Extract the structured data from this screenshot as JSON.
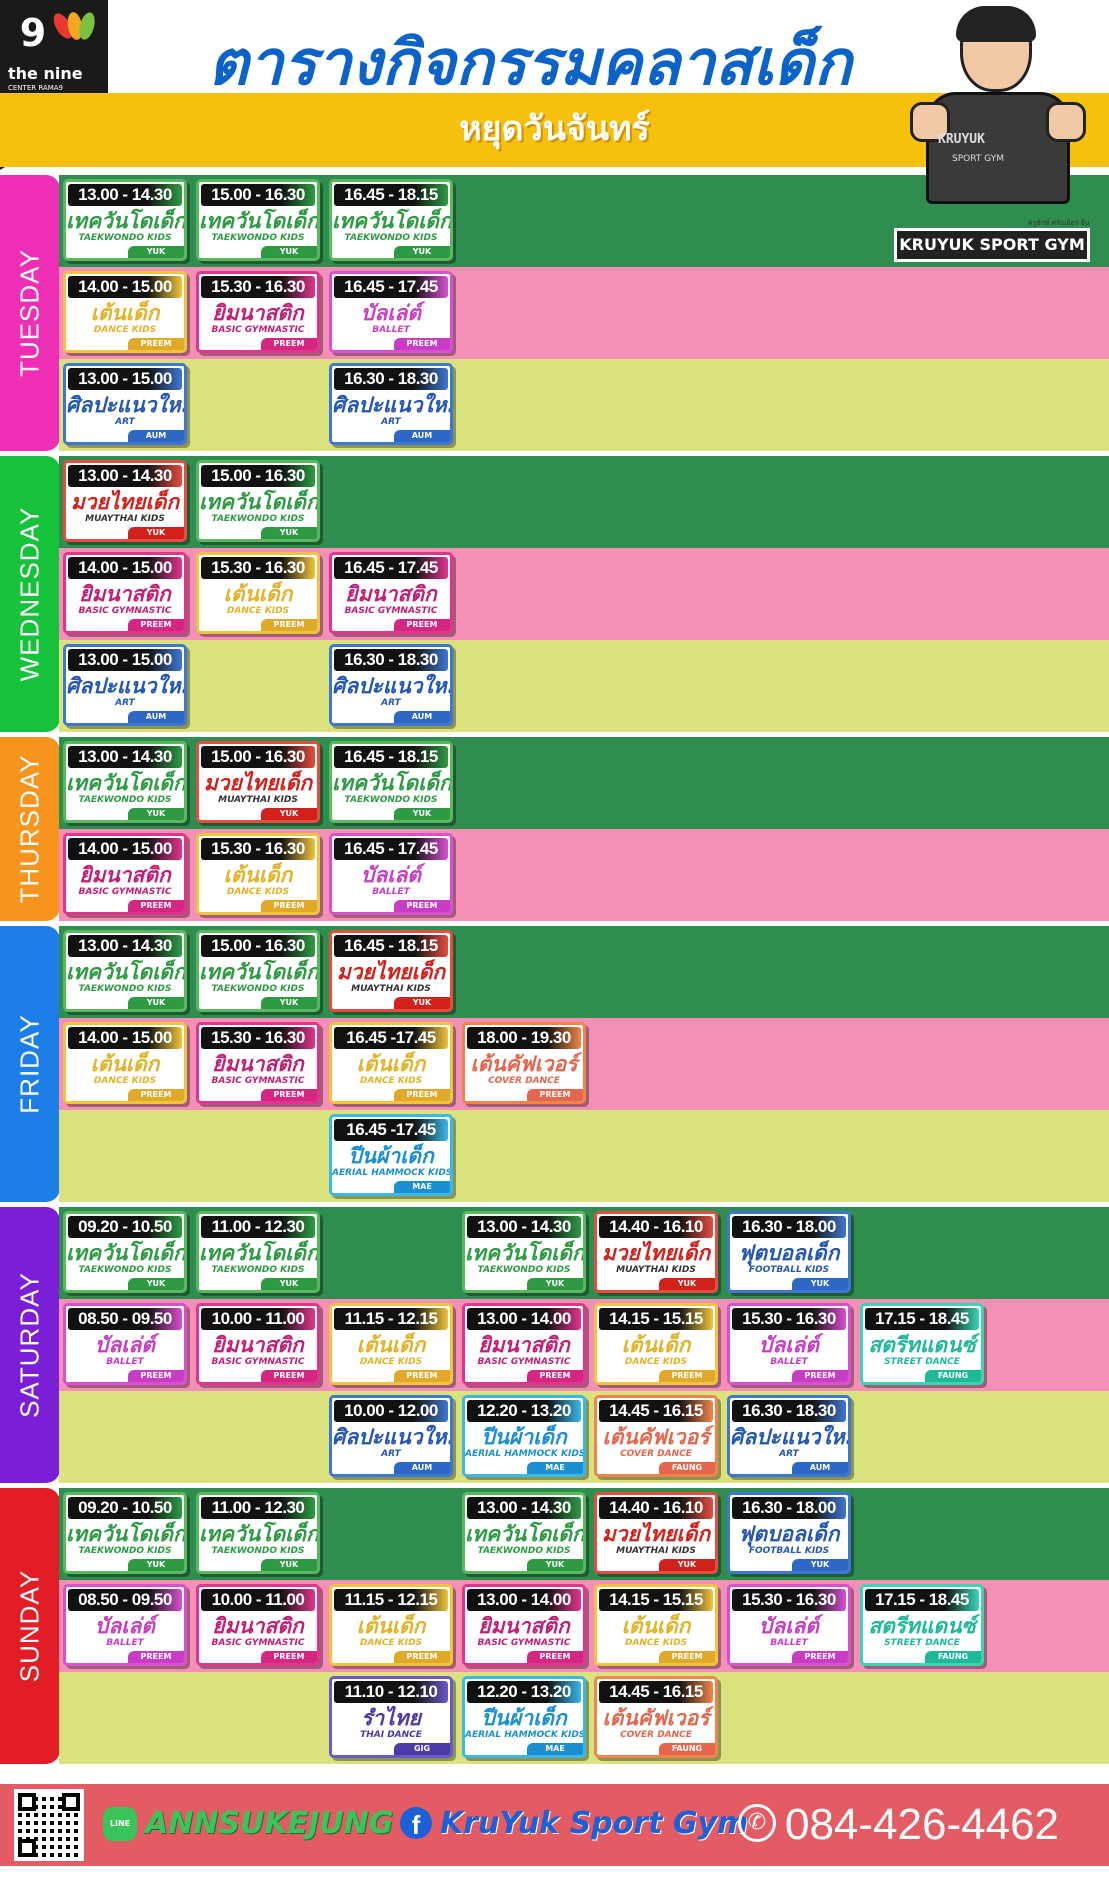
{
  "logo": {
    "number": "9",
    "name": "the nine",
    "sub": "CENTER RAMA9"
  },
  "title": "ตารางกิจกรรมคลาสเด็ก",
  "holiday": "หยุดวันจันทร์",
  "coach": {
    "shirt_brand": "KRUYUK",
    "shirt_sub": "SPORT GYM",
    "tiny": "ครูยักษ์ ศรัณย์ธร ยืน",
    "label": "KRUYUK SPORT GYM"
  },
  "days": [
    {
      "name": "TUESDAY",
      "color": "#ee2fb6",
      "rows": [
        {
          "bg": "g",
          "cards": [
            {
              "time": "13.00 - 14.30",
              "th": "เทควันโดเด็ก",
              "en": "TAEKWONDO KIDS",
              "teacher": "YUK",
              "type": "tk"
            },
            {
              "time": "15.00 - 16.30",
              "th": "เทควันโดเด็ก",
              "en": "TAEKWONDO KIDS",
              "teacher": "YUK",
              "type": "tk"
            },
            {
              "time": "16.45 - 18.15",
              "th": "เทควันโดเด็ก",
              "en": "TAEKWONDO KIDS",
              "teacher": "YUK",
              "type": "tk"
            }
          ]
        },
        {
          "bg": "p",
          "cards": [
            {
              "time": "14.00 - 15.00",
              "th": "เต้นเด็ก",
              "en": "DANCE KIDS",
              "teacher": "PREEM",
              "type": "dk"
            },
            {
              "time": "15.30 - 16.30",
              "th": "ยิมนาสติก",
              "en": "BASIC GYMNASTIC",
              "teacher": "PREEM",
              "type": "gy"
            },
            {
              "time": "16.45 - 17.45",
              "th": "บัลเล่ต์",
              "en": "BALLET",
              "teacher": "PREEM",
              "type": "bl"
            }
          ]
        },
        {
          "bg": "y",
          "cards": [
            {
              "time": "13.00 - 15.00",
              "th": "ศิลปะแนวใหม่",
              "en": "ART",
              "teacher": "AUM",
              "type": "ar"
            },
            null,
            {
              "time": "16.30 - 18.30",
              "th": "ศิลปะแนวใหม่",
              "en": "ART",
              "teacher": "AUM",
              "type": "ar"
            }
          ]
        }
      ]
    },
    {
      "name": "WEDNESDAY",
      "color": "#15c23a",
      "rows": [
        {
          "bg": "g",
          "cards": [
            {
              "time": "13.00 - 14.30",
              "th": "มวยไทยเด็ก",
              "en": "MUAYTHAI KIDS",
              "teacher": "YUK",
              "type": "mt"
            },
            {
              "time": "15.00 - 16.30",
              "th": "เทควันโดเด็ก",
              "en": "TAEKWONDO KIDS",
              "teacher": "YUK",
              "type": "tk"
            }
          ]
        },
        {
          "bg": "p",
          "cards": [
            {
              "time": "14.00 - 15.00",
              "th": "ยิมนาสติก",
              "en": "BASIC GYMNASTIC",
              "teacher": "PREEM",
              "type": "gy"
            },
            {
              "time": "15.30 - 16.30",
              "th": "เต้นเด็ก",
              "en": "DANCE KIDS",
              "teacher": "PREEM",
              "type": "dk"
            },
            {
              "time": "16.45 - 17.45",
              "th": "ยิมนาสติก",
              "en": "BASIC GYMNASTIC",
              "teacher": "PREEM",
              "type": "gy"
            }
          ]
        },
        {
          "bg": "y",
          "cards": [
            {
              "time": "13.00 - 15.00",
              "th": "ศิลปะแนวใหม่",
              "en": "ART",
              "teacher": "AUM",
              "type": "ar"
            },
            null,
            {
              "time": "16.30 - 18.30",
              "th": "ศิลปะแนวใหม่",
              "en": "ART",
              "teacher": "AUM",
              "type": "ar"
            }
          ]
        }
      ]
    },
    {
      "name": "THURSDAY",
      "color": "#f7941d",
      "rows": [
        {
          "bg": "g",
          "cards": [
            {
              "time": "13.00 - 14.30",
              "th": "เทควันโดเด็ก",
              "en": "TAEKWONDO KIDS",
              "teacher": "YUK",
              "type": "tk"
            },
            {
              "time": "15.00 - 16.30",
              "th": "มวยไทยเด็ก",
              "en": "MUAYTHAI KIDS",
              "teacher": "YUK",
              "type": "mt"
            },
            {
              "time": "16.45 - 18.15",
              "th": "เทควันโดเด็ก",
              "en": "TAEKWONDO KIDS",
              "teacher": "YUK",
              "type": "tk"
            }
          ]
        },
        {
          "bg": "p",
          "cards": [
            {
              "time": "14.00 - 15.00",
              "th": "ยิมนาสติก",
              "en": "BASIC GYMNASTIC",
              "teacher": "PREEM",
              "type": "gy"
            },
            {
              "time": "15.30 - 16.30",
              "th": "เต้นเด็ก",
              "en": "DANCE KIDS",
              "teacher": "PREEM",
              "type": "dk"
            },
            {
              "time": "16.45 - 17.45",
              "th": "บัลเล่ต์",
              "en": "BALLET",
              "teacher": "PREEM",
              "type": "bl"
            }
          ]
        }
      ]
    },
    {
      "name": "FRIDAY",
      "color": "#1e7ee8",
      "rows": [
        {
          "bg": "g",
          "cards": [
            {
              "time": "13.00 - 14.30",
              "th": "เทควันโดเด็ก",
              "en": "TAEKWONDO KIDS",
              "teacher": "YUK",
              "type": "tk"
            },
            {
              "time": "15.00 - 16.30",
              "th": "เทควันโดเด็ก",
              "en": "TAEKWONDO KIDS",
              "teacher": "YUK",
              "type": "tk"
            },
            {
              "time": "16.45 - 18.15",
              "th": "มวยไทยเด็ก",
              "en": "MUAYTHAI KIDS",
              "teacher": "YUK",
              "type": "mt"
            }
          ]
        },
        {
          "bg": "p",
          "cards": [
            {
              "time": "14.00 - 15.00",
              "th": "เต้นเด็ก",
              "en": "DANCE KIDS",
              "teacher": "PREEM",
              "type": "dk"
            },
            {
              "time": "15.30 - 16.30",
              "th": "ยิมนาสติก",
              "en": "BASIC GYMNASTIC",
              "teacher": "PREEM",
              "type": "gy"
            },
            {
              "time": "16.45 -17.45",
              "th": "เต้นเด็ก",
              "en": "DANCE KIDS",
              "teacher": "PREEM",
              "type": "dk"
            },
            {
              "time": "18.00 - 19.30",
              "th": "เต้นคัฟเวอร์",
              "en": "COVER DANCE",
              "teacher": "PREEM",
              "type": "cv"
            }
          ]
        },
        {
          "bg": "y",
          "cards": [
            null,
            null,
            {
              "time": "16.45 -17.45",
              "th": "ปีนผ้าเด็ก",
              "en": "AERIAL HAMMOCK KIDS",
              "teacher": "MAE",
              "type": "hm"
            }
          ]
        }
      ]
    },
    {
      "name": "SATURDAY",
      "color": "#7a1fd6",
      "rows": [
        {
          "bg": "g",
          "cards": [
            {
              "time": "09.20 - 10.50",
              "th": "เทควันโดเด็ก",
              "en": "TAEKWONDO KIDS",
              "teacher": "YUK",
              "type": "tk"
            },
            {
              "time": "11.00 - 12.30",
              "th": "เทควันโดเด็ก",
              "en": "TAEKWONDO KIDS",
              "teacher": "YUK",
              "type": "tk"
            },
            null,
            {
              "time": "13.00 - 14.30",
              "th": "เทควันโดเด็ก",
              "en": "TAEKWONDO KIDS",
              "teacher": "YUK",
              "type": "tk"
            },
            {
              "time": "14.40 - 16.10",
              "th": "มวยไทยเด็ก",
              "en": "MUAYTHAI KIDS",
              "teacher": "YUK",
              "type": "mt"
            },
            {
              "time": "16.30 - 18.00",
              "th": "ฟุตบอลเด็ก",
              "en": "FOOTBALL KIDS",
              "teacher": "YUK",
              "type": "fb"
            }
          ]
        },
        {
          "bg": "p",
          "cards": [
            {
              "time": "08.50 - 09.50",
              "th": "บัลเล่ต์",
              "en": "BALLET",
              "teacher": "PREEM",
              "type": "bl"
            },
            {
              "time": "10.00 - 11.00",
              "th": "ยิมนาสติก",
              "en": "BASIC GYMNASTIC",
              "teacher": "PREEM",
              "type": "gy"
            },
            {
              "time": "11.15 - 12.15",
              "th": "เต้นเด็ก",
              "en": "DANCE KIDS",
              "teacher": "PREEM",
              "type": "dk"
            },
            {
              "time": "13.00 - 14.00",
              "th": "ยิมนาสติก",
              "en": "BASIC GYMNASTIC",
              "teacher": "PREEM",
              "type": "gy"
            },
            {
              "time": "14.15 - 15.15",
              "th": "เต้นเด็ก",
              "en": "DANCE KIDS",
              "teacher": "PREEM",
              "type": "dk"
            },
            {
              "time": "15.30 - 16.30",
              "th": "บัลเล่ต์",
              "en": "BALLET",
              "teacher": "PREEM",
              "type": "bl"
            },
            {
              "time": "17.15 - 18.45",
              "th": "สตรีทแดนซ์",
              "en": "STREET DANCE",
              "teacher": "FAUNG",
              "type": "sd"
            }
          ]
        },
        {
          "bg": "y",
          "cards": [
            null,
            null,
            {
              "time": "10.00 - 12.00",
              "th": "ศิลปะแนวใหม่",
              "en": "ART",
              "teacher": "AUM",
              "type": "ar"
            },
            {
              "time": "12.20 - 13.20",
              "th": "ปีนผ้าเด็ก",
              "en": "AERIAL HAMMOCK KIDS",
              "teacher": "MAE",
              "type": "hm"
            },
            {
              "time": "14.45 - 16.15",
              "th": "เต้นคัฟเวอร์",
              "en": "COVER DANCE",
              "teacher": "FAUNG",
              "type": "cv"
            },
            {
              "time": "16.30 - 18.30",
              "th": "ศิลปะแนวใหม่",
              "en": "ART",
              "teacher": "AUM",
              "type": "ar"
            }
          ]
        }
      ]
    },
    {
      "name": "SUNDAY",
      "color": "#e21d26",
      "rows": [
        {
          "bg": "g",
          "cards": [
            {
              "time": "09.20 - 10.50",
              "th": "เทควันโดเด็ก",
              "en": "TAEKWONDO KIDS",
              "teacher": "YUK",
              "type": "tk"
            },
            {
              "time": "11.00 - 12.30",
              "th": "เทควันโดเด็ก",
              "en": "TAEKWONDO KIDS",
              "teacher": "YUK",
              "type": "tk"
            },
            null,
            {
              "time": "13.00 - 14.30",
              "th": "เทควันโดเด็ก",
              "en": "TAEKWONDO KIDS",
              "teacher": "YUK",
              "type": "tk"
            },
            {
              "time": "14.40 - 16.10",
              "th": "มวยไทยเด็ก",
              "en": "MUAYTHAI KIDS",
              "teacher": "YUK",
              "type": "mt"
            },
            {
              "time": "16.30 - 18.00",
              "th": "ฟุตบอลเด็ก",
              "en": "FOOTBALL KIDS",
              "teacher": "YUK",
              "type": "fb"
            }
          ]
        },
        {
          "bg": "p",
          "cards": [
            {
              "time": "08.50 - 09.50",
              "th": "บัลเล่ต์",
              "en": "BALLET",
              "teacher": "PREEM",
              "type": "bl"
            },
            {
              "time": "10.00 - 11.00",
              "th": "ยิมนาสติก",
              "en": "BASIC GYMNASTIC",
              "teacher": "PREEM",
              "type": "gy"
            },
            {
              "time": "11.15 - 12.15",
              "th": "เต้นเด็ก",
              "en": "DANCE KIDS",
              "teacher": "PREEM",
              "type": "dk"
            },
            {
              "time": "13.00 - 14.00",
              "th": "ยิมนาสติก",
              "en": "BASIC GYMNASTIC",
              "teacher": "PREEM",
              "type": "gy"
            },
            {
              "time": "14.15 - 15.15",
              "th": "เต้นเด็ก",
              "en": "DANCE KIDS",
              "teacher": "PREEM",
              "type": "dk"
            },
            {
              "time": "15.30 - 16.30",
              "th": "บัลเล่ต์",
              "en": "BALLET",
              "teacher": "PREEM",
              "type": "bl"
            },
            {
              "time": "17.15 - 18.45",
              "th": "สตรีทแดนซ์",
              "en": "STREET DANCE",
              "teacher": "FAUNG",
              "type": "sd"
            }
          ]
        },
        {
          "bg": "y",
          "cards": [
            null,
            null,
            {
              "time": "11.10 - 12.10",
              "th": "รำไทย",
              "en": "THAI DANCE",
              "teacher": "GIG",
              "type": "th"
            },
            {
              "time": "12.20 - 13.20",
              "th": "ปีนผ้าเด็ก",
              "en": "AERIAL HAMMOCK KIDS",
              "teacher": "MAE",
              "type": "hm"
            },
            {
              "time": "14.45 - 16.15",
              "th": "เต้นคัฟเวอร์",
              "en": "COVER DANCE",
              "teacher": "FAUNG",
              "type": "cv"
            }
          ]
        }
      ]
    }
  ],
  "footer": {
    "line_icon": "LINE",
    "line_id": "ANNSUKEJUNG",
    "fb_icon": "f",
    "facebook": "KruYuk Sport Gym",
    "phone": "084-426-4462",
    "phone_icon": "phone-icon"
  }
}
